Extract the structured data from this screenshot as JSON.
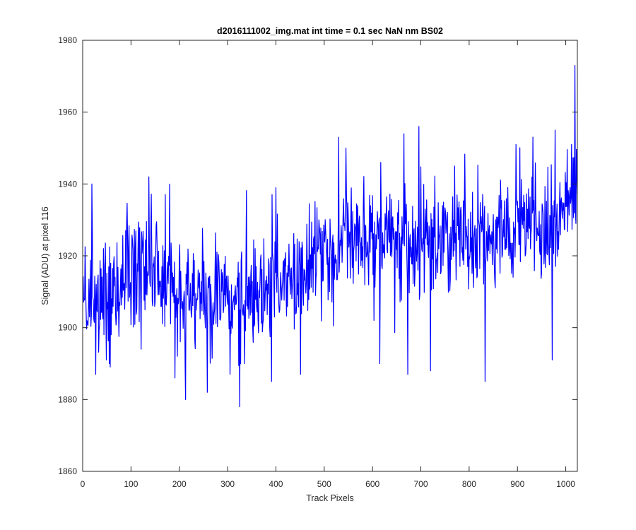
{
  "chart_data": {
    "type": "line",
    "title": "d2016111002_img.mat int time = 0.1 sec  NaN nm BS02",
    "xlabel": "Track Pixels",
    "ylabel": "Signal (ADU) at pixel 116",
    "xlim": [
      0,
      1024
    ],
    "ylim": [
      1860,
      1980
    ],
    "xticks": [
      0,
      100,
      200,
      300,
      400,
      500,
      600,
      700,
      800,
      900,
      1000
    ],
    "yticks": [
      1860,
      1880,
      1900,
      1920,
      1940,
      1960,
      1980
    ],
    "grid": false,
    "legend": "none",
    "line_color": "#0000ff",
    "trend_anchors": [
      [
        1,
        1910
      ],
      [
        30,
        1908
      ],
      [
        60,
        1910
      ],
      [
        100,
        1916
      ],
      [
        150,
        1918
      ],
      [
        200,
        1912
      ],
      [
        260,
        1910
      ],
      [
        320,
        1906
      ],
      [
        360,
        1908
      ],
      [
        400,
        1912
      ],
      [
        450,
        1914
      ],
      [
        500,
        1919
      ],
      [
        540,
        1926
      ],
      [
        600,
        1924
      ],
      [
        650,
        1922
      ],
      [
        700,
        1924
      ],
      [
        760,
        1926
      ],
      [
        800,
        1924
      ],
      [
        850,
        1926
      ],
      [
        900,
        1928
      ],
      [
        950,
        1929
      ],
      [
        1000,
        1932
      ],
      [
        1010,
        1940
      ],
      [
        1024,
        1936
      ]
    ],
    "noise_amplitude": 8,
    "highlight_points": [
      [
        19,
        1940
      ],
      [
        27,
        1887
      ],
      [
        49,
        1891
      ],
      [
        55,
        1890
      ],
      [
        137,
        1942
      ],
      [
        121,
        1894
      ],
      [
        191,
        1886
      ],
      [
        213,
        1880
      ],
      [
        258,
        1882
      ],
      [
        305,
        1887
      ],
      [
        325,
        1878
      ],
      [
        335,
        1890
      ],
      [
        391,
        1885
      ],
      [
        400,
        1939
      ],
      [
        451,
        1887
      ],
      [
        530,
        1953
      ],
      [
        545,
        1950
      ],
      [
        615,
        1890
      ],
      [
        617,
        1946
      ],
      [
        665,
        1954
      ],
      [
        673,
        1887
      ],
      [
        696,
        1956
      ],
      [
        720,
        1888
      ],
      [
        770,
        1945
      ],
      [
        833,
        1885
      ],
      [
        880,
        1939
      ],
      [
        897,
        1951
      ],
      [
        972,
        1891
      ],
      [
        978,
        1955
      ],
      [
        1012,
        1951
      ],
      [
        1019,
        1973
      ],
      [
        1021,
        1929
      ]
    ]
  }
}
